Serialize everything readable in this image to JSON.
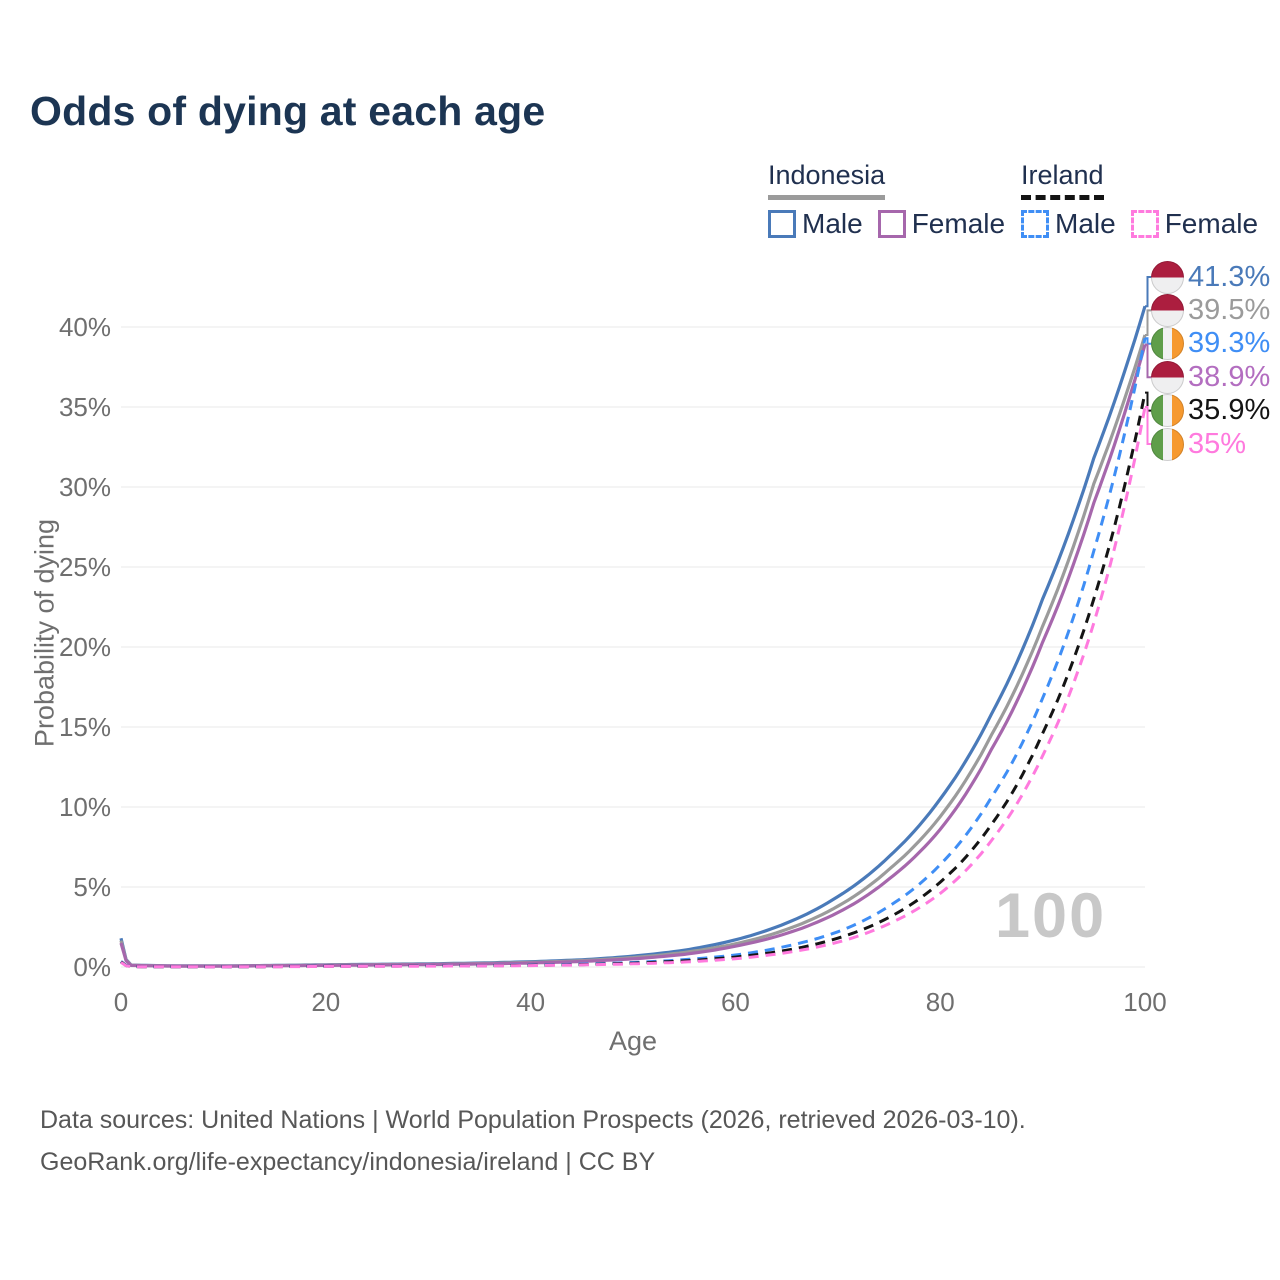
{
  "title": "Odds of dying at each age",
  "watermark": "100",
  "legend": {
    "groups": [
      {
        "name": "Indonesia",
        "style": "solid",
        "line_color": "#9b9b9b",
        "items": [
          {
            "label": "Male",
            "color": "#4a7ab9"
          },
          {
            "label": "Female",
            "color": "#a667ac"
          }
        ]
      },
      {
        "name": "Ireland",
        "style": "dashed",
        "line_color": "#141414",
        "items": [
          {
            "label": "Male",
            "color": "#3f8ef5"
          },
          {
            "label": "Female",
            "color": "#ff7ade"
          }
        ]
      }
    ]
  },
  "end_labels": [
    {
      "series": 0,
      "flag": "indonesia",
      "value": "41.3%",
      "color": "#4a7ab9"
    },
    {
      "series": 1,
      "flag": "indonesia",
      "value": "39.5%",
      "color": "#9b9b9b"
    },
    {
      "series": 3,
      "flag": "ireland",
      "value": "39.3%",
      "color": "#3f8ef5"
    },
    {
      "series": 2,
      "flag": "indonesia",
      "value": "38.9%",
      "color": "#b36ec0"
    },
    {
      "series": 4,
      "flag": "ireland",
      "value": "35.9%",
      "color": "#141414"
    },
    {
      "series": 5,
      "flag": "ireland",
      "value": "35%",
      "color": "#ff7ade"
    }
  ],
  "footer": {
    "line1": "Data sources: United Nations | World Population Prospects (2026, retrieved 2026-03-10).",
    "line2": "GeoRank.org/life-expectancy/indonesia/ireland | CC BY"
  },
  "chart_data": {
    "type": "line",
    "title": "Odds of dying at each age",
    "xlabel": "Age",
    "ylabel": "Probability of dying",
    "unit": "annual probability of dying (%) at each age",
    "xlim": [
      0,
      100
    ],
    "ylim": [
      0,
      43
    ],
    "grid": "horizontal",
    "legend_position": "top-right",
    "x_ticks": [
      0,
      20,
      40,
      60,
      80,
      100
    ],
    "y_ticks": [
      {
        "value": 0,
        "label": "0%"
      },
      {
        "value": 5,
        "label": "5%"
      },
      {
        "value": 10,
        "label": "10%"
      },
      {
        "value": 15,
        "label": "15%"
      },
      {
        "value": 20,
        "label": "20%"
      },
      {
        "value": 25,
        "label": "25%"
      },
      {
        "value": 30,
        "label": "30%"
      },
      {
        "value": 35,
        "label": "35%"
      },
      {
        "value": 40,
        "label": "40%"
      }
    ],
    "ages": [
      0,
      1,
      5,
      10,
      15,
      20,
      25,
      30,
      35,
      40,
      45,
      50,
      55,
      60,
      65,
      70,
      75,
      80,
      85,
      90,
      95,
      100
    ],
    "series": [
      {
        "name": "Indonesia Male",
        "country": "Indonesia",
        "sex": "male",
        "style": "solid",
        "color": "#4a7ab9",
        "values": [
          1.8,
          0.12,
          0.07,
          0.07,
          0.1,
          0.14,
          0.17,
          0.2,
          0.25,
          0.33,
          0.45,
          0.68,
          1.05,
          1.7,
          2.75,
          4.4,
          6.9,
          10.5,
          15.8,
          23.0,
          31.8,
          41.3
        ],
        "end_value_label": "41.3%"
      },
      {
        "name": "Indonesia",
        "country": "Indonesia",
        "sex": "both",
        "style": "solid",
        "color": "#9b9b9b",
        "values": [
          1.65,
          0.11,
          0.06,
          0.06,
          0.09,
          0.12,
          0.15,
          0.17,
          0.22,
          0.29,
          0.4,
          0.59,
          0.91,
          1.45,
          2.35,
          3.8,
          6.1,
          9.4,
          14.5,
          21.3,
          30.2,
          39.5
        ],
        "end_value_label": "39.5%"
      },
      {
        "name": "Indonesia Female",
        "country": "Indonesia",
        "sex": "female",
        "style": "solid",
        "color": "#a667ac",
        "values": [
          1.5,
          0.1,
          0.06,
          0.05,
          0.08,
          0.1,
          0.13,
          0.15,
          0.19,
          0.25,
          0.35,
          0.51,
          0.79,
          1.3,
          2.1,
          3.4,
          5.5,
          8.6,
          13.6,
          20.3,
          29.0,
          38.9
        ],
        "end_value_label": "38.9%"
      },
      {
        "name": "Ireland Male",
        "country": "Ireland",
        "sex": "male",
        "style": "dashed",
        "color": "#3f8ef5",
        "values": [
          0.35,
          0.03,
          0.015,
          0.012,
          0.03,
          0.055,
          0.065,
          0.075,
          0.09,
          0.12,
          0.18,
          0.28,
          0.46,
          0.75,
          1.3,
          2.2,
          3.8,
          6.4,
          10.6,
          16.8,
          26.0,
          39.3
        ],
        "end_value_label": "39.3%"
      },
      {
        "name": "Ireland",
        "country": "Ireland",
        "sex": "both",
        "style": "dashed",
        "color": "#141414",
        "values": [
          0.32,
          0.025,
          0.012,
          0.01,
          0.025,
          0.045,
          0.055,
          0.065,
          0.08,
          0.1,
          0.15,
          0.24,
          0.38,
          0.62,
          1.05,
          1.8,
          3.1,
          5.3,
          8.9,
          14.6,
          23.0,
          35.9
        ],
        "end_value_label": "35.9%"
      },
      {
        "name": "Ireland Female",
        "country": "Ireland",
        "sex": "female",
        "style": "dashed",
        "color": "#ff7ade",
        "values": [
          0.29,
          0.022,
          0.01,
          0.009,
          0.02,
          0.035,
          0.045,
          0.055,
          0.07,
          0.09,
          0.13,
          0.2,
          0.31,
          0.52,
          0.9,
          1.55,
          2.7,
          4.6,
          7.9,
          13.2,
          21.5,
          35.0
        ],
        "end_value_label": "35%"
      }
    ]
  }
}
